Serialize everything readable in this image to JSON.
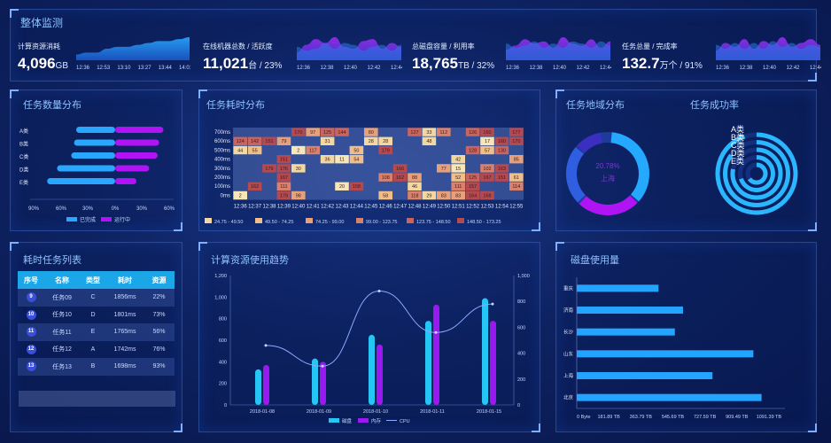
{
  "header": {
    "title": "整体监测"
  },
  "kpis": [
    {
      "label": "计算资源消耗",
      "value": "4,096",
      "unit": "GB",
      "times": [
        "12:36",
        "12:53",
        "13:10",
        "13:27",
        "13:44",
        "14:01"
      ],
      "series": [
        3,
        4,
        4,
        6,
        7,
        7,
        8,
        9,
        10,
        10,
        11,
        12
      ]
    },
    {
      "label": "在线机器总数 / 活跃度",
      "value": "11,021",
      "unit": "台 / 23%",
      "times": [
        "12:36",
        "12:38",
        "12:40",
        "12:42",
        "12:44"
      ],
      "series": [
        4,
        8,
        11,
        9,
        12,
        7,
        6,
        10,
        11,
        6,
        9,
        7
      ],
      "series2": [
        7,
        5,
        6,
        9,
        6,
        9,
        8,
        5,
        7,
        8,
        5,
        8
      ]
    },
    {
      "label": "总磁盘容量 / 利用率",
      "value": "18,765",
      "unit": "TB / 32%",
      "times": [
        "12:36",
        "12:38",
        "12:40",
        "12:42",
        "12:44"
      ],
      "series": [
        5,
        7,
        10,
        8,
        9,
        6,
        11,
        8,
        7,
        10,
        6,
        9
      ],
      "series2": [
        8,
        6,
        7,
        9,
        6,
        8,
        6,
        9,
        8,
        6,
        9,
        7
      ]
    },
    {
      "label": "任务总量 / 完成率",
      "value": "132.7",
      "unit": "万个 / 91%",
      "times": [
        "12:36",
        "12:38",
        "12:40",
        "12:42",
        "12:44"
      ],
      "series": [
        5,
        9,
        7,
        11,
        6,
        10,
        8,
        12,
        7,
        9,
        11,
        8
      ],
      "series2": [
        8,
        6,
        9,
        6,
        9,
        6,
        10,
        7,
        9,
        6,
        8,
        7
      ]
    }
  ],
  "task_count": {
    "title": "任务数量分布",
    "categories": [
      "A类",
      "B类",
      "C类",
      "D类",
      "E类"
    ],
    "completed": [
      55,
      58,
      62,
      82,
      96
    ],
    "running": [
      68,
      62,
      60,
      48,
      30
    ],
    "ticks": [
      "90%",
      "60%",
      "30%",
      "0%",
      "30%",
      "60%"
    ],
    "legend": [
      "已完成",
      "运行中"
    ],
    "colors": [
      "#29a7ff",
      "#b014f5"
    ]
  },
  "duration": {
    "title": "任务耗时分布",
    "ylabels": [
      "700ms",
      "600ms",
      "500ms",
      "400ms",
      "300ms",
      "200ms",
      "100ms",
      "0ms"
    ],
    "xlabels": [
      "12:36",
      "12:37",
      "12:38",
      "12:39",
      "12:40",
      "12:41",
      "12:42",
      "12:43",
      "12:44",
      "12:45",
      "12:46",
      "12:47",
      "12:48",
      "12:49",
      "12:50",
      "12:51",
      "12:52",
      "12:53",
      "12:54",
      "12:55"
    ],
    "cells": [
      {
        "r": 0,
        "c": 4,
        "v": "170"
      },
      {
        "r": 0,
        "c": 5,
        "v": "97"
      },
      {
        "r": 0,
        "c": 6,
        "v": "125"
      },
      {
        "r": 0,
        "c": 7,
        "v": "144"
      },
      {
        "r": 0,
        "c": 9,
        "v": "80"
      },
      {
        "r": 0,
        "c": 12,
        "v": "127"
      },
      {
        "r": 0,
        "c": 13,
        "v": "33"
      },
      {
        "r": 0,
        "c": 14,
        "v": "112"
      },
      {
        "r": 0,
        "c": 16,
        "v": "126"
      },
      {
        "r": 0,
        "c": 17,
        "v": "160"
      },
      {
        "r": 0,
        "c": 19,
        "v": "177"
      },
      {
        "r": 1,
        "c": 0,
        "v": "124"
      },
      {
        "r": 1,
        "c": 1,
        "v": "142"
      },
      {
        "r": 1,
        "c": 2,
        "v": "151"
      },
      {
        "r": 1,
        "c": 3,
        "v": "79"
      },
      {
        "r": 1,
        "c": 6,
        "v": "31"
      },
      {
        "r": 1,
        "c": 9,
        "v": "28"
      },
      {
        "r": 1,
        "c": 10,
        "v": "28"
      },
      {
        "r": 1,
        "c": 13,
        "v": "48"
      },
      {
        "r": 1,
        "c": 17,
        "v": "17"
      },
      {
        "r": 1,
        "c": 18,
        "v": "160"
      },
      {
        "r": 1,
        "c": 19,
        "v": "170"
      },
      {
        "r": 2,
        "c": 0,
        "v": "44"
      },
      {
        "r": 2,
        "c": 1,
        "v": "55"
      },
      {
        "r": 2,
        "c": 4,
        "v": "2"
      },
      {
        "r": 2,
        "c": 5,
        "v": "117"
      },
      {
        "r": 2,
        "c": 8,
        "v": "50"
      },
      {
        "r": 2,
        "c": 10,
        "v": "179"
      },
      {
        "r": 2,
        "c": 16,
        "v": "128"
      },
      {
        "r": 2,
        "c": 17,
        "v": "57"
      },
      {
        "r": 2,
        "c": 18,
        "v": "130"
      },
      {
        "r": 3,
        "c": 3,
        "v": "151"
      },
      {
        "r": 3,
        "c": 6,
        "v": "36"
      },
      {
        "r": 3,
        "c": 7,
        "v": "11"
      },
      {
        "r": 3,
        "c": 8,
        "v": "54"
      },
      {
        "r": 3,
        "c": 15,
        "v": "42"
      },
      {
        "r": 3,
        "c": 19,
        "v": "85"
      },
      {
        "r": 4,
        "c": 2,
        "v": "179"
      },
      {
        "r": 4,
        "c": 3,
        "v": "176"
      },
      {
        "r": 4,
        "c": 4,
        "v": "30"
      },
      {
        "r": 4,
        "c": 11,
        "v": "166"
      },
      {
        "r": 4,
        "c": 14,
        "v": "77"
      },
      {
        "r": 4,
        "c": 15,
        "v": "15"
      },
      {
        "r": 4,
        "c": 17,
        "v": "102"
      },
      {
        "r": 4,
        "c": 18,
        "v": "163"
      },
      {
        "r": 5,
        "c": 3,
        "v": "167"
      },
      {
        "r": 5,
        "c": 10,
        "v": "108"
      },
      {
        "r": 5,
        "c": 11,
        "v": "162"
      },
      {
        "r": 5,
        "c": 12,
        "v": "88"
      },
      {
        "r": 5,
        "c": 15,
        "v": "52"
      },
      {
        "r": 5,
        "c": 16,
        "v": "125"
      },
      {
        "r": 5,
        "c": 17,
        "v": "167"
      },
      {
        "r": 5,
        "c": 18,
        "v": "151"
      },
      {
        "r": 5,
        "c": 19,
        "v": "61"
      },
      {
        "r": 6,
        "c": 1,
        "v": "162"
      },
      {
        "r": 6,
        "c": 3,
        "v": "111"
      },
      {
        "r": 6,
        "c": 7,
        "v": "20"
      },
      {
        "r": 6,
        "c": 8,
        "v": "158"
      },
      {
        "r": 6,
        "c": 12,
        "v": "46"
      },
      {
        "r": 6,
        "c": 15,
        "v": "111"
      },
      {
        "r": 6,
        "c": 16,
        "v": "157"
      },
      {
        "r": 6,
        "c": 19,
        "v": "114"
      },
      {
        "r": 7,
        "c": 0,
        "v": "2"
      },
      {
        "r": 7,
        "c": 3,
        "v": "179"
      },
      {
        "r": 7,
        "c": 4,
        "v": "98"
      },
      {
        "r": 7,
        "c": 10,
        "v": "58"
      },
      {
        "r": 7,
        "c": 12,
        "v": "118"
      },
      {
        "r": 7,
        "c": 13,
        "v": "29"
      },
      {
        "r": 7,
        "c": 14,
        "v": "83"
      },
      {
        "r": 7,
        "c": 15,
        "v": "83"
      },
      {
        "r": 7,
        "c": 16,
        "v": "164"
      },
      {
        "r": 7,
        "c": 17,
        "v": "168"
      }
    ],
    "legend": [
      "24.75 - 49.50",
      "49.50 - 74.25",
      "74.25 - 99.00",
      "99.00 - 123.75",
      "123.75 - 148.50",
      "148.50 - 173.25"
    ],
    "legend_colors": [
      "#f2d8a0",
      "#f0be88",
      "#e6a07a",
      "#d9816c",
      "#c9645e",
      "#b44a50"
    ]
  },
  "region": {
    "title": "任务地域分布",
    "center_value": "20.78%",
    "center_label": "上海"
  },
  "success": {
    "title": "任务成功率",
    "labels": [
      "A类",
      "B类",
      "C类",
      "D类",
      "E类"
    ],
    "values": [
      0.95,
      0.85,
      0.78,
      0.7,
      0.65
    ]
  },
  "long_tasks": {
    "title": "耗时任务列表",
    "headers": [
      "序号",
      "名称",
      "类型",
      "耗时",
      "资源"
    ],
    "rows": [
      [
        "9",
        "任务09",
        "C",
        "1856ms",
        "22%"
      ],
      [
        "10",
        "任务10",
        "D",
        "1801ms",
        "73%"
      ],
      [
        "11",
        "任务11",
        "E",
        "1765ms",
        "56%"
      ],
      [
        "12",
        "任务12",
        "A",
        "1742ms",
        "76%"
      ],
      [
        "13",
        "任务13",
        "B",
        "1698ms",
        "93%"
      ]
    ]
  },
  "trend": {
    "title": "计算资源使用趋势",
    "categories": [
      "2018-01-08",
      "2018-01-09",
      "2018-01-10",
      "2018-01-11",
      "2018-01-15"
    ],
    "disk": [
      330,
      430,
      650,
      780,
      990
    ],
    "memory": [
      370,
      400,
      560,
      930,
      780
    ],
    "cpu": [
      460,
      300,
      880,
      560,
      780
    ],
    "left_ticks": [
      "0",
      "200",
      "400",
      "600",
      "800",
      "1,000",
      "1,200"
    ],
    "right_ticks": [
      "0",
      "200",
      "400",
      "600",
      "800",
      "1,000"
    ],
    "legend": [
      "磁盘",
      "内存",
      "CPU"
    ],
    "colors": [
      "#25c6f5",
      "#9a19f0",
      "#8fa8ff"
    ]
  },
  "disk_usage": {
    "title": "磁盘使用量",
    "categories": [
      "重庆",
      "济南",
      "长沙",
      "山东",
      "上海",
      "北京"
    ],
    "values": [
      500,
      650,
      600,
      1080,
      830,
      1130
    ],
    "ticks": [
      "0 Byte",
      "181.89 TB",
      "363.79 TB",
      "545.69 TB",
      "727.59 TB",
      "909.49 TB",
      "1091.39 TB"
    ]
  }
}
